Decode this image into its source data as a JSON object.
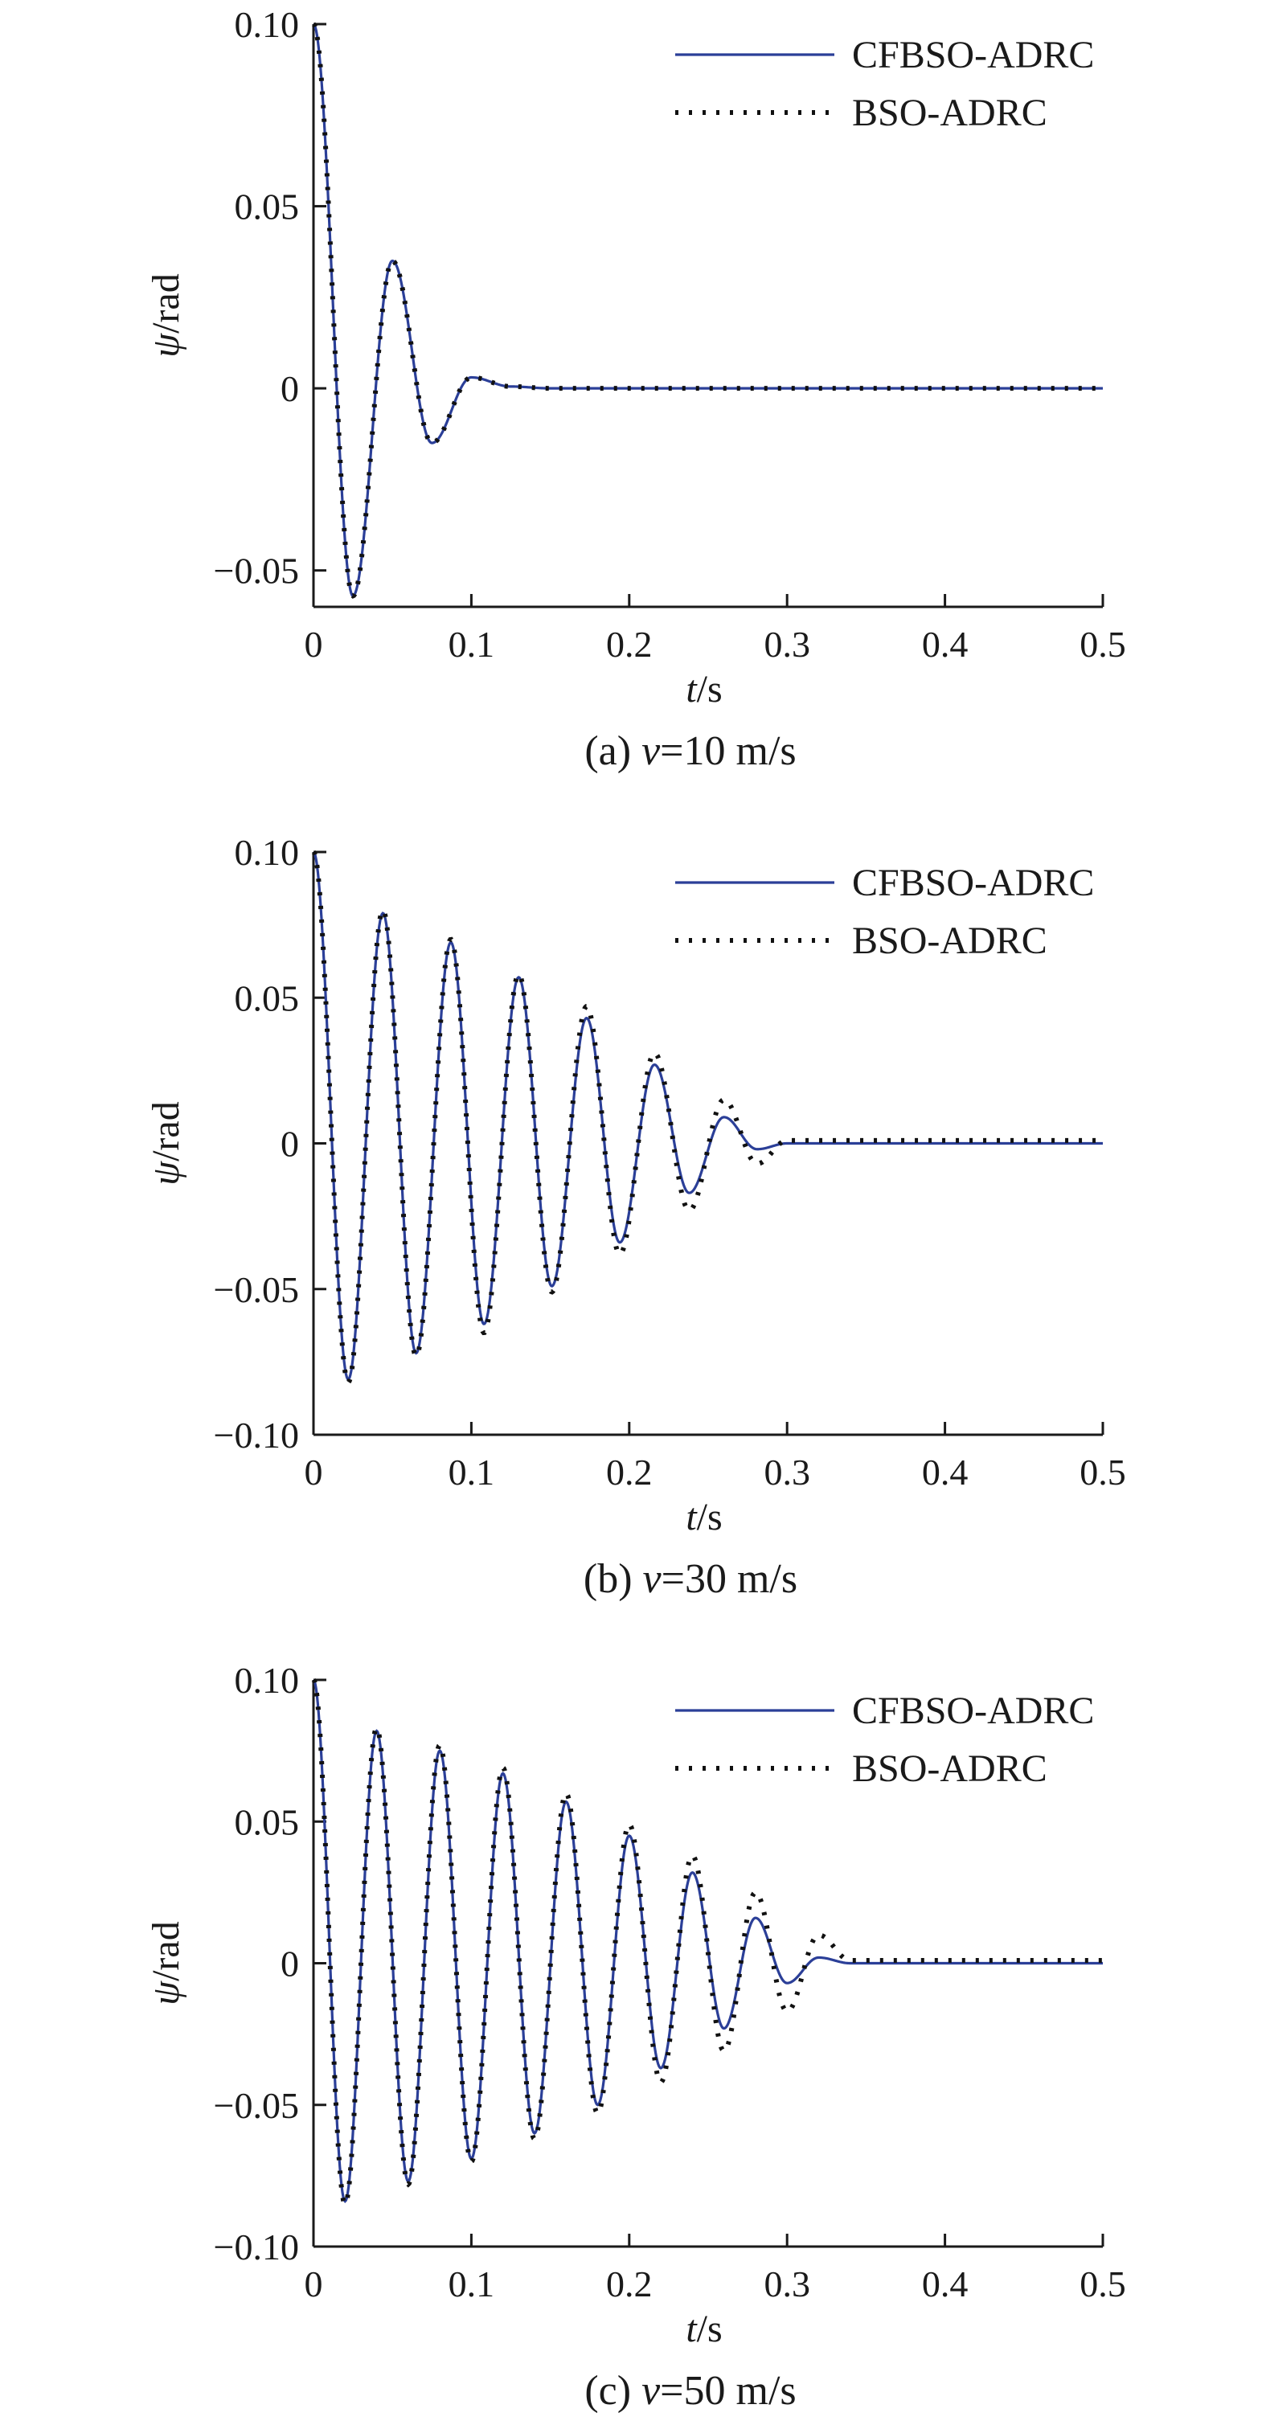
{
  "chart_data": [
    {
      "type": "line",
      "caption_prefix": "(a) ",
      "caption_var": "v",
      "caption_suffix": "=10 m/s",
      "xlabel_var": "t",
      "xlabel_unit": "/s",
      "ylabel_var": "ψ",
      "ylabel_unit": "/rad",
      "xlim": [
        0,
        0.5
      ],
      "ylim": [
        -0.06,
        0.1
      ],
      "xticks": [
        0,
        0.1,
        0.2,
        0.3,
        0.4,
        0.5
      ],
      "xtick_labels": [
        "0",
        "0.1",
        "0.2",
        "0.3",
        "0.4",
        "0.5"
      ],
      "yticks": [
        -0.05,
        0,
        0.05,
        0.1
      ],
      "ytick_labels": [
        "−0.05",
        "0",
        "0.05",
        "0.10"
      ],
      "legend_position": "top-right",
      "series": [
        {
          "name": "CFBSO-ADRC",
          "style": "solid",
          "color": "#2b3f98",
          "x": [
            0,
            0.025,
            0.05,
            0.075,
            0.1,
            0.125,
            0.15,
            0.5
          ],
          "values": [
            0.1,
            -0.057,
            0.035,
            -0.015,
            0.003,
            0.0005,
            0,
            0
          ]
        },
        {
          "name": "BSO-ADRC",
          "style": "dotted",
          "color": "#111111",
          "x": [
            0,
            0.025,
            0.05,
            0.075,
            0.1,
            0.125,
            0.15,
            0.5
          ],
          "values": [
            0.1,
            -0.057,
            0.035,
            -0.015,
            0.003,
            0.0005,
            0,
            0
          ]
        }
      ]
    },
    {
      "type": "line",
      "caption_prefix": "(b) ",
      "caption_var": "v",
      "caption_suffix": "=30 m/s",
      "xlabel_var": "t",
      "xlabel_unit": "/s",
      "ylabel_var": "ψ",
      "ylabel_unit": "/rad",
      "xlim": [
        0,
        0.5
      ],
      "ylim": [
        -0.1,
        0.1
      ],
      "xticks": [
        0,
        0.1,
        0.2,
        0.3,
        0.4,
        0.5
      ],
      "xtick_labels": [
        "0",
        "0.1",
        "0.2",
        "0.3",
        "0.4",
        "0.5"
      ],
      "yticks": [
        -0.1,
        -0.05,
        0,
        0.05,
        0.1
      ],
      "ytick_labels": [
        "−0.10",
        "−0.05",
        "0",
        "0.05",
        "0.10"
      ],
      "legend_position": "top-right",
      "series": [
        {
          "name": "CFBSO-ADRC",
          "style": "solid",
          "color": "#2b3f98",
          "x": [
            0,
            0.022,
            0.044,
            0.065,
            0.087,
            0.108,
            0.13,
            0.151,
            0.173,
            0.194,
            0.216,
            0.238,
            0.26,
            0.281,
            0.3,
            0.5
          ],
          "values": [
            0.1,
            -0.081,
            0.079,
            -0.072,
            0.069,
            -0.062,
            0.057,
            -0.049,
            0.043,
            -0.034,
            0.027,
            -0.017,
            0.009,
            -0.002,
            0,
            0
          ]
        },
        {
          "name": "BSO-ADRC",
          "style": "dotted",
          "color": "#111111",
          "x": [
            0,
            0.022,
            0.044,
            0.065,
            0.087,
            0.108,
            0.13,
            0.151,
            0.173,
            0.194,
            0.216,
            0.238,
            0.26,
            0.281,
            0.3,
            0.5
          ],
          "values": [
            0.1,
            -0.082,
            0.08,
            -0.073,
            0.07,
            -0.065,
            0.058,
            -0.051,
            0.047,
            -0.038,
            0.031,
            -0.023,
            0.015,
            -0.007,
            0.001,
            0.001
          ]
        }
      ]
    },
    {
      "type": "line",
      "caption_prefix": "(c) ",
      "caption_var": "v",
      "caption_suffix": "=50 m/s",
      "xlabel_var": "t",
      "xlabel_unit": "/s",
      "ylabel_var": "ψ",
      "ylabel_unit": "/rad",
      "xlim": [
        0,
        0.5
      ],
      "ylim": [
        -0.1,
        0.1
      ],
      "xticks": [
        0,
        0.1,
        0.2,
        0.3,
        0.4,
        0.5
      ],
      "xtick_labels": [
        "0",
        "0.1",
        "0.2",
        "0.3",
        "0.4",
        "0.5"
      ],
      "yticks": [
        -0.1,
        -0.05,
        0,
        0.05,
        0.1
      ],
      "ytick_labels": [
        "−0.10",
        "−0.05",
        "0",
        "0.05",
        "0.10"
      ],
      "legend_position": "top-right",
      "series": [
        {
          "name": "CFBSO-ADRC",
          "style": "solid",
          "color": "#2b3f98",
          "x": [
            0,
            0.02,
            0.04,
            0.06,
            0.08,
            0.1,
            0.12,
            0.14,
            0.16,
            0.18,
            0.2,
            0.22,
            0.24,
            0.26,
            0.28,
            0.3,
            0.32,
            0.34,
            0.5
          ],
          "values": [
            0.1,
            -0.084,
            0.082,
            -0.077,
            0.075,
            -0.069,
            0.067,
            -0.06,
            0.057,
            -0.05,
            0.045,
            -0.037,
            0.032,
            -0.023,
            0.016,
            -0.007,
            0.002,
            0,
            0
          ]
        },
        {
          "name": "BSO-ADRC",
          "style": "dotted",
          "color": "#111111",
          "x": [
            0,
            0.02,
            0.04,
            0.06,
            0.08,
            0.1,
            0.12,
            0.14,
            0.16,
            0.18,
            0.2,
            0.22,
            0.24,
            0.26,
            0.28,
            0.3,
            0.32,
            0.34,
            0.5
          ],
          "values": [
            0.1,
            -0.085,
            0.083,
            -0.078,
            0.077,
            -0.07,
            0.069,
            -0.062,
            0.06,
            -0.053,
            0.049,
            -0.042,
            0.038,
            -0.031,
            0.025,
            -0.017,
            0.01,
            0.001,
            0.001
          ]
        }
      ]
    }
  ]
}
